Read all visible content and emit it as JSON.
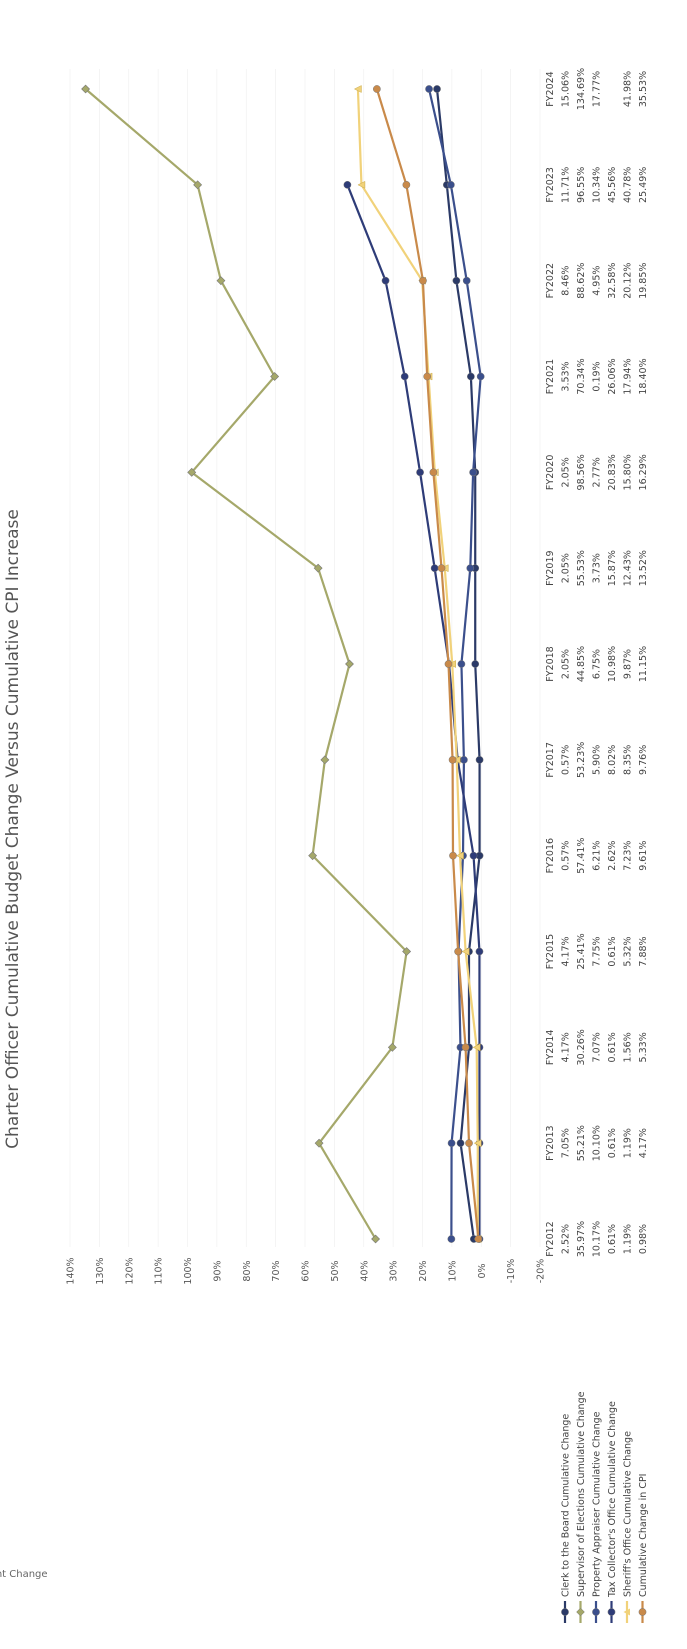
{
  "chart_data": {
    "type": "line",
    "title": "Charter Officer Cumulative Budget Change Versus Cumulative CPI Increase",
    "ylabel": "Percent Change",
    "ylim": [
      -20,
      140
    ],
    "y_ticks": [
      "-20%",
      "-10%",
      "0%",
      "10%",
      "20%",
      "30%",
      "40%",
      "50%",
      "60%",
      "70%",
      "80%",
      "90%",
      "100%",
      "110%",
      "120%",
      "130%",
      "140%"
    ],
    "categories": [
      "FY2012",
      "FY2013",
      "FY2014",
      "FY2015",
      "FY2016",
      "FY2017",
      "FY2018",
      "FY2019",
      "FY2020",
      "FY2021",
      "FY2022",
      "FY2023",
      "FY2024"
    ],
    "series": [
      {
        "name": "Clerk to the Board Cumulative Change",
        "color": "#2b3a67",
        "marker": "circle",
        "values": [
          2.52,
          7.05,
          4.17,
          4.17,
          0.57,
          0.57,
          2.05,
          2.05,
          2.05,
          3.53,
          8.46,
          11.71,
          15.06
        ],
        "labels": [
          "2.52%",
          "7.05%",
          "4.17%",
          "4.17%",
          "0.57%",
          "0.57%",
          "2.05%",
          "2.05%",
          "2.05%",
          "3.53%",
          "8.46%",
          "11.71%",
          "15.06%"
        ]
      },
      {
        "name": "Supervisor of Elections Cumulative Change",
        "color": "#a5a86a",
        "marker": "diamond",
        "values": [
          35.97,
          55.21,
          30.26,
          25.41,
          57.41,
          53.23,
          44.85,
          55.53,
          98.56,
          70.34,
          88.62,
          96.55,
          134.69
        ],
        "labels": [
          "35.97%",
          "55.21%",
          "30.26%",
          "25.41%",
          "57.41%",
          "53.23%",
          "44.85%",
          "55.53%",
          "98.56%",
          "70.34%",
          "88.62%",
          "96.55%",
          "134.69%"
        ]
      },
      {
        "name": "Property Appraiser Cumulative Change",
        "color": "#3b4f8c",
        "marker": "circle",
        "values": [
          10.17,
          10.1,
          7.07,
          7.75,
          6.21,
          5.9,
          6.75,
          3.73,
          2.77,
          0.19,
          4.95,
          10.34,
          17.77
        ],
        "labels": [
          "10.17%",
          "10.10%",
          "7.07%",
          "7.75%",
          "6.21%",
          "5.90%",
          "6.75%",
          "3.73%",
          "2.77%",
          "0.19%",
          "4.95%",
          "10.34%",
          "17.77%"
        ]
      },
      {
        "name": "Tax Collector's Office Cumulative Change",
        "color": "#2e3c78",
        "marker": "circle",
        "values": [
          0.61,
          0.61,
          0.61,
          0.61,
          2.62,
          8.02,
          10.98,
          15.87,
          20.83,
          26.06,
          32.58,
          45.56,
          null
        ],
        "labels": [
          "0.61%",
          "0.61%",
          "0.61%",
          "0.61%",
          "2.62%",
          "8.02%",
          "10.98%",
          "15.87%",
          "20.83%",
          "26.06%",
          "32.58%",
          "45.56%",
          ""
        ]
      },
      {
        "name": "Sheriff's Office Cumulative Change",
        "color": "#f1d27a",
        "marker": "triangle",
        "values": [
          1.19,
          1.19,
          1.56,
          5.32,
          7.23,
          8.35,
          9.87,
          12.43,
          15.8,
          17.94,
          20.12,
          40.78,
          41.98
        ],
        "labels": [
          "1.19%",
          "1.19%",
          "1.56%",
          "5.32%",
          "7.23%",
          "8.35%",
          "9.87%",
          "12.43%",
          "15.80%",
          "17.94%",
          "20.12%",
          "40.78%",
          "41.98%"
        ]
      },
      {
        "name": "Cumulative Change in CPI",
        "color": "#c98a4a",
        "marker": "circle",
        "values": [
          0.98,
          4.17,
          5.33,
          7.88,
          9.61,
          9.76,
          11.15,
          13.52,
          16.29,
          18.4,
          19.85,
          25.49,
          35.53
        ],
        "labels": [
          "0.98%",
          "4.17%",
          "5.33%",
          "7.88%",
          "9.61%",
          "9.76%",
          "11.15%",
          "13.52%",
          "16.29%",
          "18.40%",
          "19.85%",
          "25.49%",
          "35.53%"
        ]
      }
    ]
  }
}
